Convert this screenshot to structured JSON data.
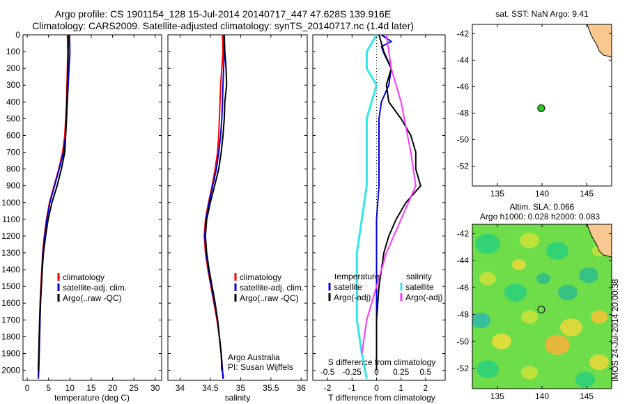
{
  "header": {
    "title_line1": "Argo profile: CS 1901154_128 15-Jul-2014 20140717_447 47.628S 139.916E",
    "title_line2": "Climatology: CARS2009. Satellite-adjusted climatology: synTS_20140717.nc (1.4d later)"
  },
  "colors": {
    "climatology": "#ff0000",
    "satellite": "#0000dd",
    "argo": "#000000",
    "salinity_satellite": "#33e6e6",
    "salinity_argo": "#ff33ff",
    "land": "#f8c890",
    "marker": "#22cc22"
  },
  "chart_data": [
    {
      "id": "temperature",
      "type": "line",
      "xlabel": "temperature (deg C)",
      "ylabel": "",
      "xlim": [
        -1,
        31.5
      ],
      "ylim": [
        2060,
        0
      ],
      "x_ticks": [
        0,
        5,
        10,
        15,
        20,
        25,
        30
      ],
      "y_ticks": [
        0,
        100,
        200,
        300,
        400,
        500,
        600,
        700,
        800,
        900,
        1000,
        1100,
        1200,
        1300,
        1400,
        1500,
        1600,
        1700,
        1800,
        1900,
        2000
      ],
      "legend": [
        "climatology",
        "satellite-adj. clim.",
        "Argo(..raw -QC)"
      ],
      "legend_position": "lower-center",
      "series": [
        {
          "name": "climatology",
          "color": "#ff0000",
          "points": [
            [
              9.4,
              0
            ],
            [
              9.5,
              100
            ],
            [
              9.4,
              200
            ],
            [
              9.3,
              300
            ],
            [
              9.2,
              400
            ],
            [
              9.0,
              500
            ],
            [
              8.8,
              600
            ],
            [
              8.3,
              700
            ],
            [
              7.4,
              800
            ],
            [
              6.3,
              900
            ],
            [
              5.2,
              1000
            ],
            [
              4.5,
              1100
            ],
            [
              4.0,
              1200
            ],
            [
              3.6,
              1300
            ],
            [
              3.4,
              1400
            ],
            [
              3.2,
              1500
            ],
            [
              3.0,
              1600
            ],
            [
              2.9,
              1700
            ],
            [
              2.8,
              1800
            ],
            [
              2.7,
              1900
            ],
            [
              2.6,
              2000
            ],
            [
              2.6,
              2050
            ]
          ]
        },
        {
          "name": "satellite-adj. clim.",
          "color": "#0000dd",
          "points": [
            [
              9.9,
              0
            ],
            [
              10.0,
              100
            ],
            [
              9.8,
              200
            ],
            [
              9.6,
              300
            ],
            [
              9.4,
              400
            ],
            [
              9.2,
              500
            ],
            [
              9.0,
              600
            ],
            [
              8.5,
              700
            ],
            [
              7.5,
              800
            ],
            [
              6.4,
              900
            ],
            [
              5.3,
              1000
            ],
            [
              4.6,
              1100
            ],
            [
              4.1,
              1200
            ],
            [
              3.7,
              1300
            ],
            [
              3.5,
              1400
            ],
            [
              3.3,
              1500
            ],
            [
              3.1,
              1600
            ],
            [
              3.0,
              1700
            ],
            [
              2.9,
              1800
            ],
            [
              2.8,
              1900
            ],
            [
              2.7,
              2000
            ],
            [
              2.6,
              2050
            ]
          ]
        },
        {
          "name": "Argo(..raw -QC)",
          "color": "#000000",
          "points": [
            [
              9.6,
              0
            ],
            [
              9.6,
              100
            ],
            [
              9.5,
              200
            ],
            [
              9.4,
              300
            ],
            [
              9.3,
              400
            ],
            [
              9.2,
              500
            ],
            [
              9.0,
              600
            ],
            [
              8.8,
              700
            ],
            [
              8.0,
              800
            ],
            [
              7.0,
              900
            ],
            [
              5.8,
              1000
            ],
            [
              4.9,
              1100
            ],
            [
              4.3,
              1200
            ],
            [
              3.8,
              1300
            ],
            [
              3.5,
              1400
            ],
            [
              3.3,
              1500
            ],
            [
              3.1,
              1600
            ],
            [
              2.9,
              1700
            ],
            [
              2.8,
              1800
            ],
            [
              2.7,
              1900
            ],
            [
              2.6,
              2000
            ]
          ]
        }
      ]
    },
    {
      "id": "salinity",
      "type": "line",
      "xlabel": "salinity",
      "ylabel": "",
      "xlim": [
        33.8,
        36.1
      ],
      "ylim": [
        2060,
        0
      ],
      "x_ticks": [
        34,
        34.5,
        35,
        35.5,
        36
      ],
      "legend": [
        "climatology",
        "satellite-adj. clim.",
        "Argo(..raw -QC)"
      ],
      "legend_position": "lower-center",
      "annotation": [
        "Argo Australia",
        "PI: Susan Wijffels"
      ],
      "series": [
        {
          "name": "climatology",
          "color": "#ff0000",
          "points": [
            [
              34.7,
              0
            ],
            [
              34.71,
              100
            ],
            [
              34.69,
              200
            ],
            [
              34.67,
              300
            ],
            [
              34.66,
              400
            ],
            [
              34.65,
              500
            ],
            [
              34.64,
              600
            ],
            [
              34.62,
              700
            ],
            [
              34.58,
              800
            ],
            [
              34.53,
              900
            ],
            [
              34.47,
              1000
            ],
            [
              34.42,
              1100
            ],
            [
              34.4,
              1200
            ],
            [
              34.42,
              1300
            ],
            [
              34.46,
              1400
            ],
            [
              34.51,
              1500
            ],
            [
              34.56,
              1600
            ],
            [
              34.61,
              1700
            ],
            [
              34.65,
              1800
            ],
            [
              34.68,
              1900
            ],
            [
              34.7,
              2000
            ],
            [
              34.72,
              2050
            ]
          ]
        },
        {
          "name": "satellite-adj. clim.",
          "color": "#0000dd",
          "points": [
            [
              34.72,
              0
            ],
            [
              34.73,
              100
            ],
            [
              34.72,
              200
            ],
            [
              34.71,
              300
            ],
            [
              34.7,
              400
            ],
            [
              34.69,
              500
            ],
            [
              34.67,
              600
            ],
            [
              34.64,
              700
            ],
            [
              34.6,
              800
            ],
            [
              34.54,
              900
            ],
            [
              34.48,
              1000
            ],
            [
              34.43,
              1100
            ],
            [
              34.41,
              1200
            ],
            [
              34.43,
              1300
            ],
            [
              34.47,
              1400
            ],
            [
              34.52,
              1500
            ],
            [
              34.57,
              1600
            ],
            [
              34.62,
              1700
            ],
            [
              34.65,
              1800
            ],
            [
              34.68,
              1900
            ],
            [
              34.7,
              2000
            ],
            [
              34.71,
              2050
            ]
          ]
        },
        {
          "name": "Argo(..raw -QC)",
          "color": "#000000",
          "points": [
            [
              34.73,
              0
            ],
            [
              34.74,
              100
            ],
            [
              34.76,
              200
            ],
            [
              34.77,
              300
            ],
            [
              34.74,
              400
            ],
            [
              34.73,
              500
            ],
            [
              34.71,
              600
            ],
            [
              34.68,
              700
            ],
            [
              34.64,
              800
            ],
            [
              34.57,
              900
            ],
            [
              34.5,
              1000
            ],
            [
              34.44,
              1100
            ],
            [
              34.42,
              1200
            ],
            [
              34.44,
              1300
            ],
            [
              34.48,
              1400
            ],
            [
              34.53,
              1500
            ],
            [
              34.58,
              1600
            ],
            [
              34.62,
              1700
            ],
            [
              34.65,
              1800
            ],
            [
              34.68,
              1900
            ],
            [
              34.69,
              2000
            ]
          ]
        }
      ]
    },
    {
      "id": "difference",
      "type": "line",
      "xlabel": "T difference from climatology",
      "xlabel_top": "S difference from climatology",
      "xlim": [
        -2.6,
        2.8
      ],
      "ylim": [
        2060,
        0
      ],
      "x_ticks": [
        -2,
        -1,
        0,
        1,
        2
      ],
      "s_ticks": [
        "-0.5",
        "-0.25",
        "0",
        "0.25",
        "0.5"
      ],
      "legend_temperature_title": "temperature",
      "legend_salinity_title": "salinity",
      "legend_temperature": [
        "satellite",
        "Argo(-adj)"
      ],
      "legend_salinity": [
        "satellite",
        "Argo(-adj)"
      ],
      "series": [
        {
          "name": "T satellite",
          "color": "#0000dd",
          "points": [
            [
              0.2,
              0
            ],
            [
              0.6,
              40
            ],
            [
              0.2,
              70
            ],
            [
              0.3,
              110
            ],
            [
              0.6,
              200
            ],
            [
              0.5,
              300
            ],
            [
              0.2,
              400
            ],
            [
              0.1,
              500
            ],
            [
              0.1,
              700
            ],
            [
              0.1,
              900
            ],
            [
              0.0,
              1100
            ],
            [
              0.0,
              1400
            ],
            [
              0.0,
              1700
            ],
            [
              0.0,
              2000
            ]
          ]
        },
        {
          "name": "T Argo(-adj)",
          "color": "#000000",
          "points": [
            [
              0.1,
              0
            ],
            [
              0.3,
              100
            ],
            [
              0.6,
              200
            ],
            [
              0.4,
              300
            ],
            [
              0.5,
              400
            ],
            [
              1.0,
              500
            ],
            [
              1.4,
              600
            ],
            [
              1.6,
              700
            ],
            [
              1.6,
              800
            ],
            [
              1.8,
              900
            ],
            [
              1.2,
              1000
            ],
            [
              0.8,
              1100
            ],
            [
              0.5,
              1200
            ],
            [
              0.3,
              1300
            ],
            [
              0.1,
              1500
            ],
            [
              0.0,
              1700
            ],
            [
              0.0,
              2000
            ]
          ]
        },
        {
          "name": "S satellite",
          "color": "#33e6e6",
          "points": [
            [
              0.0,
              0
            ],
            [
              -0.1,
              100
            ],
            [
              -0.1,
              200
            ],
            [
              0.0,
              300
            ],
            [
              -0.1,
              500
            ],
            [
              -0.1,
              700
            ],
            [
              -0.1,
              900
            ],
            [
              -0.15,
              1100
            ],
            [
              -0.2,
              1300
            ],
            [
              -0.2,
              1500
            ],
            [
              -0.2,
              1700
            ],
            [
              -0.15,
              1900
            ],
            [
              -0.1,
              2050
            ]
          ]
        },
        {
          "name": "S Argo(-adj)",
          "color": "#ff33ff",
          "points": [
            [
              0.1,
              0
            ],
            [
              0.15,
              200
            ],
            [
              0.25,
              400
            ],
            [
              0.35,
              700
            ],
            [
              0.4,
              900
            ],
            [
              0.25,
              1100
            ],
            [
              0.1,
              1300
            ],
            [
              0.0,
              1500
            ],
            [
              -0.1,
              1700
            ],
            [
              -0.15,
              1900
            ]
          ]
        }
      ]
    },
    {
      "id": "sst_map",
      "type": "scatter",
      "title": "sat. SST: NaN Argo: 9.41",
      "xlim": [
        132.2,
        147.8
      ],
      "ylim": [
        -53.5,
        -41.3
      ],
      "x_ticks": [
        135,
        140,
        145
      ],
      "y_ticks": [
        -42,
        -44,
        -46,
        -48,
        -50,
        -52
      ],
      "points": [
        {
          "x": 139.916,
          "y": -47.628
        }
      ]
    },
    {
      "id": "sla_map",
      "type": "heatmap",
      "title_line1": "Altim. SLA: 0.066",
      "title_line2": "Argo h1000: 0.028 h2000: 0.083",
      "side_label": "IMOS 24-Jul-2014 20:00:38",
      "xlim": [
        132.2,
        147.8
      ],
      "ylim": [
        -53.5,
        -41.3
      ],
      "x_ticks": [
        135,
        140,
        145
      ],
      "y_ticks": [
        -42,
        -44,
        -46,
        -48,
        -50,
        -52
      ],
      "points": [
        {
          "x": 139.916,
          "y": -47.628
        }
      ]
    }
  ]
}
